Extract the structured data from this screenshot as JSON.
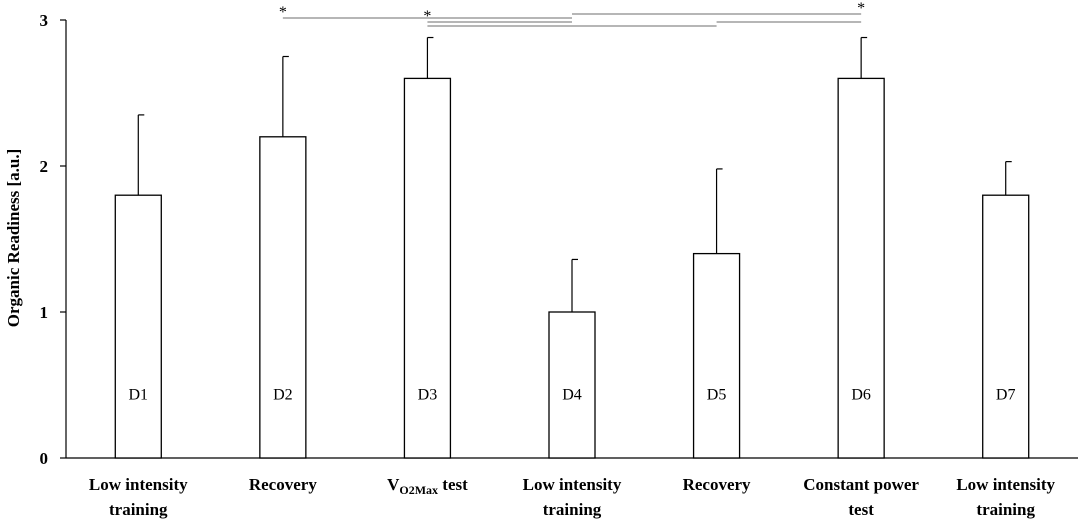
{
  "chart_data": {
    "type": "bar",
    "title": "",
    "xlabel": "",
    "ylabel": "Organic Readiness [a.u.]",
    "ylim": [
      0,
      3
    ],
    "yticks": [
      "0",
      "1",
      "2",
      "3"
    ],
    "categories": [
      {
        "line1": "Low intensity",
        "line2": "training",
        "day": "D1"
      },
      {
        "line1": "Recovery",
        "line2": "",
        "day": "D2"
      },
      {
        "line1": "V",
        "sub": "O2Max",
        "suffix": " test",
        "line2": "",
        "day": "D3"
      },
      {
        "line1": "Low intensity",
        "line2": "training",
        "day": "D4"
      },
      {
        "line1": "Recovery",
        "line2": "",
        "day": "D5"
      },
      {
        "line1": "Constant power",
        "line2": "test",
        "day": "D6"
      },
      {
        "line1": "Low intensity",
        "line2": "training",
        "day": "D7"
      }
    ],
    "values": [
      1.8,
      2.2,
      2.6,
      1.0,
      1.4,
      2.6,
      1.8
    ],
    "errors": [
      0.55,
      0.55,
      0.28,
      0.36,
      0.58,
      0.28,
      0.23
    ],
    "significance": [
      {
        "from": 1,
        "to": 3,
        "symbol": "*"
      },
      {
        "from": 2,
        "to": 3,
        "symbol": "*"
      },
      {
        "from": 2,
        "to": 4,
        "symbol": ""
      },
      {
        "from": 3,
        "to": 5,
        "symbol": "*"
      },
      {
        "from": 4,
        "to": 5,
        "symbol": ""
      }
    ],
    "grid": false,
    "legend": "none"
  }
}
